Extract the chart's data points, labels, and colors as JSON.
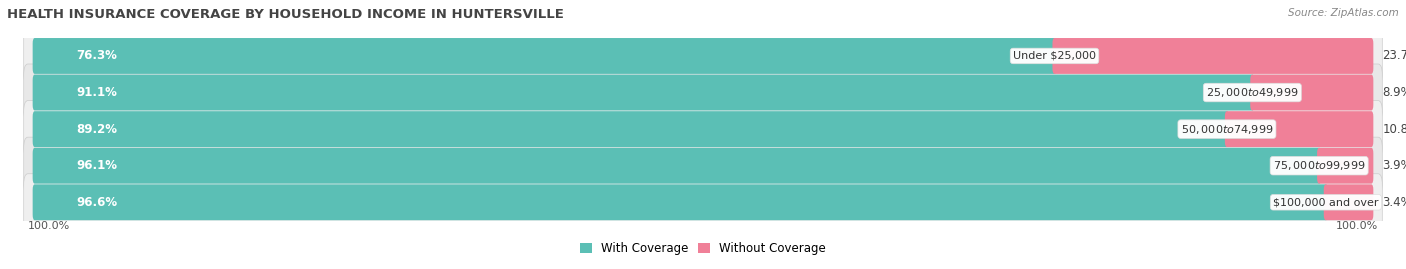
{
  "title": "HEALTH INSURANCE COVERAGE BY HOUSEHOLD INCOME IN HUNTERSVILLE",
  "source": "Source: ZipAtlas.com",
  "categories": [
    "Under $25,000",
    "$25,000 to $49,999",
    "$50,000 to $74,999",
    "$75,000 to $99,999",
    "$100,000 and over"
  ],
  "with_coverage": [
    76.3,
    91.1,
    89.2,
    96.1,
    96.6
  ],
  "without_coverage": [
    23.7,
    8.9,
    10.8,
    3.9,
    3.4
  ],
  "coverage_color": "#5BBFB5",
  "no_coverage_color": "#F08098",
  "row_bg_even": "#EFEFEF",
  "row_bg_odd": "#E8E8E8",
  "label_left_100": "100.0%",
  "label_right_100": "100.0%",
  "legend_coverage": "With Coverage",
  "legend_no_coverage": "Without Coverage",
  "title_fontsize": 9.5,
  "source_fontsize": 7.5,
  "bar_label_fontsize": 8.5,
  "category_fontsize": 8,
  "legend_fontsize": 8.5,
  "axis_label_fontsize": 8
}
